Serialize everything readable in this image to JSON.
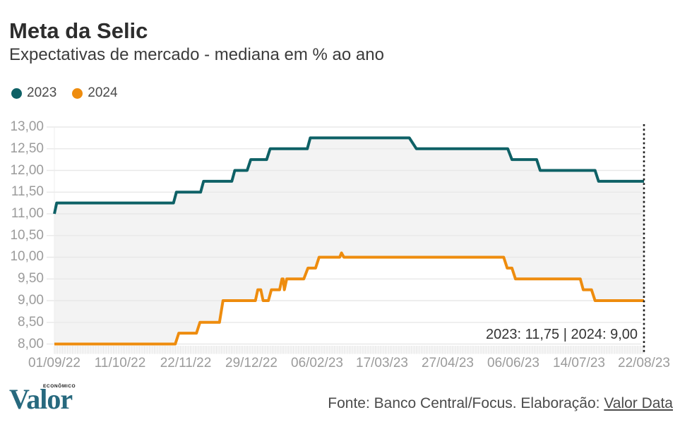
{
  "header": {
    "title": "Meta da Selic",
    "subtitle": "Expectativas de mercado - mediana em % ao ano"
  },
  "legend": {
    "items": [
      {
        "label": "2023",
        "color": "#0e6166"
      },
      {
        "label": "2024",
        "color": "#ee8c0e"
      }
    ]
  },
  "chart_data": {
    "type": "line",
    "title": "Meta da Selic",
    "subtitle": "Expectativas de mercado - mediana em % ao ano",
    "ylim": [
      8,
      13
    ],
    "y_step": 0.5,
    "grid": true,
    "legend_position": "top-left",
    "ytick_labels": [
      "13,00",
      "12,50",
      "12,00",
      "11,50",
      "11,00",
      "10,50",
      "10,00",
      "9,50",
      "9,00",
      "8,50",
      "8,00"
    ],
    "xtick_labels": [
      "01/09/22",
      "11/10/22",
      "22/11/22",
      "29/12/22",
      "06/02/23",
      "17/03/23",
      "27/04/23",
      "06/06/23",
      "14/07/23",
      "22/08/23"
    ],
    "x_encoding": "fraction of x-axis, 0 = 01/09/22 and 1 = 22/08/23",
    "annotation": "2023: 11,75  |  2024: 9,00",
    "end_marker": "dotted-vertical-line-at-last-date",
    "colors": {
      "series_2023": "#0e6166",
      "series_2024": "#ee8c0e",
      "area_fill": "#f3f3f3",
      "grid": "#e8e8e8",
      "axis_text": "#9b9b9b",
      "end_marker": "#1f1f1f"
    },
    "series": [
      {
        "name": "2023",
        "color": "#0e6166",
        "final_value": 11.75,
        "points": [
          [
            0.0,
            11.0
          ],
          [
            0.004,
            11.25
          ],
          [
            0.202,
            11.25
          ],
          [
            0.207,
            11.5
          ],
          [
            0.248,
            11.5
          ],
          [
            0.253,
            11.75
          ],
          [
            0.301,
            11.75
          ],
          [
            0.306,
            12.0
          ],
          [
            0.327,
            12.0
          ],
          [
            0.333,
            12.25
          ],
          [
            0.36,
            12.25
          ],
          [
            0.366,
            12.5
          ],
          [
            0.429,
            12.5
          ],
          [
            0.434,
            12.75
          ],
          [
            0.602,
            12.75
          ],
          [
            0.614,
            12.5
          ],
          [
            0.769,
            12.5
          ],
          [
            0.776,
            12.25
          ],
          [
            0.818,
            12.25
          ],
          [
            0.824,
            12.0
          ],
          [
            0.917,
            12.0
          ],
          [
            0.923,
            11.75
          ],
          [
            1.0,
            11.75
          ]
        ]
      },
      {
        "name": "2024",
        "color": "#ee8c0e",
        "final_value": 9.0,
        "points": [
          [
            0.0,
            8.0
          ],
          [
            0.205,
            8.0
          ],
          [
            0.211,
            8.25
          ],
          [
            0.241,
            8.25
          ],
          [
            0.247,
            8.5
          ],
          [
            0.28,
            8.5
          ],
          [
            0.286,
            9.0
          ],
          [
            0.341,
            9.0
          ],
          [
            0.345,
            9.25
          ],
          [
            0.35,
            9.25
          ],
          [
            0.354,
            9.0
          ],
          [
            0.363,
            9.0
          ],
          [
            0.368,
            9.25
          ],
          [
            0.382,
            9.25
          ],
          [
            0.386,
            9.5
          ],
          [
            0.388,
            9.5
          ],
          [
            0.39,
            9.25
          ],
          [
            0.394,
            9.5
          ],
          [
            0.423,
            9.5
          ],
          [
            0.43,
            9.75
          ],
          [
            0.443,
            9.75
          ],
          [
            0.449,
            10.0
          ],
          [
            0.484,
            10.0
          ],
          [
            0.487,
            10.1
          ],
          [
            0.491,
            10.0
          ],
          [
            0.762,
            10.0
          ],
          [
            0.768,
            9.75
          ],
          [
            0.776,
            9.75
          ],
          [
            0.782,
            9.5
          ],
          [
            0.892,
            9.5
          ],
          [
            0.897,
            9.25
          ],
          [
            0.911,
            9.25
          ],
          [
            0.917,
            9.0
          ],
          [
            1.0,
            9.0
          ]
        ]
      }
    ]
  },
  "footer": {
    "logo_text": "Valor",
    "logo_superscript": "ECONÔMICO",
    "source_prefix": "Fonte: Banco Central/Focus. Elaboração: ",
    "source_link": "Valor Data"
  }
}
